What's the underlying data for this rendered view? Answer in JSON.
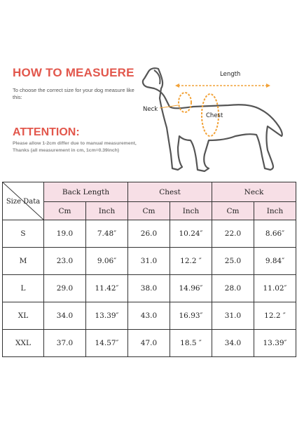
{
  "heading": {
    "title": "HOW TO MEASUERE",
    "title_color": "#e2574c",
    "intro": "To choose the correct size for your dog measure like this:"
  },
  "attention": {
    "title": "ATTENTION:",
    "title_color": "#e2574c",
    "note": "Please allow 1-2cm differ due to manual measurement, Thanks (all measurement in cm, 1cm=0.39inch)"
  },
  "diagram": {
    "length_label": "Length",
    "neck_label": "Neck",
    "chest_label": "Chest",
    "measure_color": "#f2a33a",
    "dog_outline_color": "#555555"
  },
  "table": {
    "header_bg": "#f7dfe6",
    "corner_label": "Size Data",
    "groups": [
      "Back Length",
      "Chest",
      "Neck"
    ],
    "units": [
      "Cm",
      "Inch",
      "Cm",
      "Inch",
      "Cm",
      "Inch"
    ],
    "rows": [
      {
        "size": "S",
        "cells": [
          "19.0",
          "7.48″",
          "26.0",
          "10.24″",
          "22.0",
          "8.66″"
        ]
      },
      {
        "size": "M",
        "cells": [
          "23.0",
          "9.06″",
          "31.0",
          "12.2 ″",
          "25.0",
          "9.84″"
        ]
      },
      {
        "size": "L",
        "cells": [
          "29.0",
          "11.42″",
          "38.0",
          "14.96″",
          "28.0",
          "11.02″"
        ]
      },
      {
        "size": "XL",
        "cells": [
          "34.0",
          "13.39″",
          "43.0",
          "16.93″",
          "31.0",
          "12.2 ″"
        ]
      },
      {
        "size": "XXL",
        "cells": [
          "37.0",
          "14.57″",
          "47.0",
          "18.5 ″",
          "34.0",
          "13.39″"
        ]
      }
    ]
  }
}
